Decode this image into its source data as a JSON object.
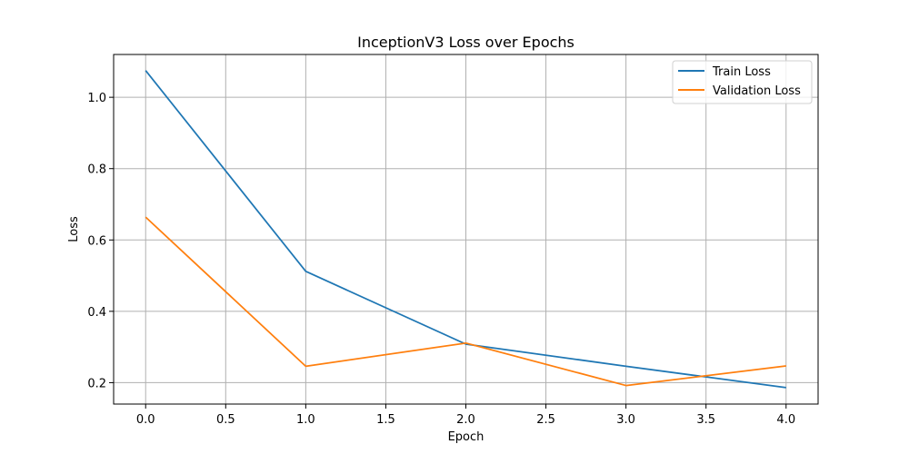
{
  "chart_data": {
    "type": "line",
    "title": "InceptionV3 Loss over Epochs",
    "xlabel": "Epoch",
    "ylabel": "Loss",
    "x": [
      0,
      1,
      2,
      3,
      4
    ],
    "series": [
      {
        "name": "Train Loss",
        "color": "#1f77b4",
        "values": [
          1.075,
          0.512,
          0.308,
          0.246,
          0.186
        ]
      },
      {
        "name": "Validation Loss",
        "color": "#ff7f0e",
        "values": [
          0.664,
          0.246,
          0.311,
          0.192,
          0.247
        ]
      }
    ],
    "xlim": [
      -0.2,
      4.2
    ],
    "ylim": [
      0.14,
      1.12
    ],
    "xticks": [
      0,
      0.5,
      1,
      1.5,
      2,
      2.5,
      3,
      3.5,
      4
    ],
    "xtick_labels": [
      "0.0",
      "0.5",
      "1.0",
      "1.5",
      "2.0",
      "2.5",
      "3.0",
      "3.5",
      "4.0"
    ],
    "yticks": [
      0.2,
      0.4,
      0.6,
      0.8,
      1.0
    ],
    "ytick_labels": [
      "0.2",
      "0.4",
      "0.6",
      "0.8",
      "1.0"
    ],
    "grid": true,
    "legend_position": "top-right"
  }
}
